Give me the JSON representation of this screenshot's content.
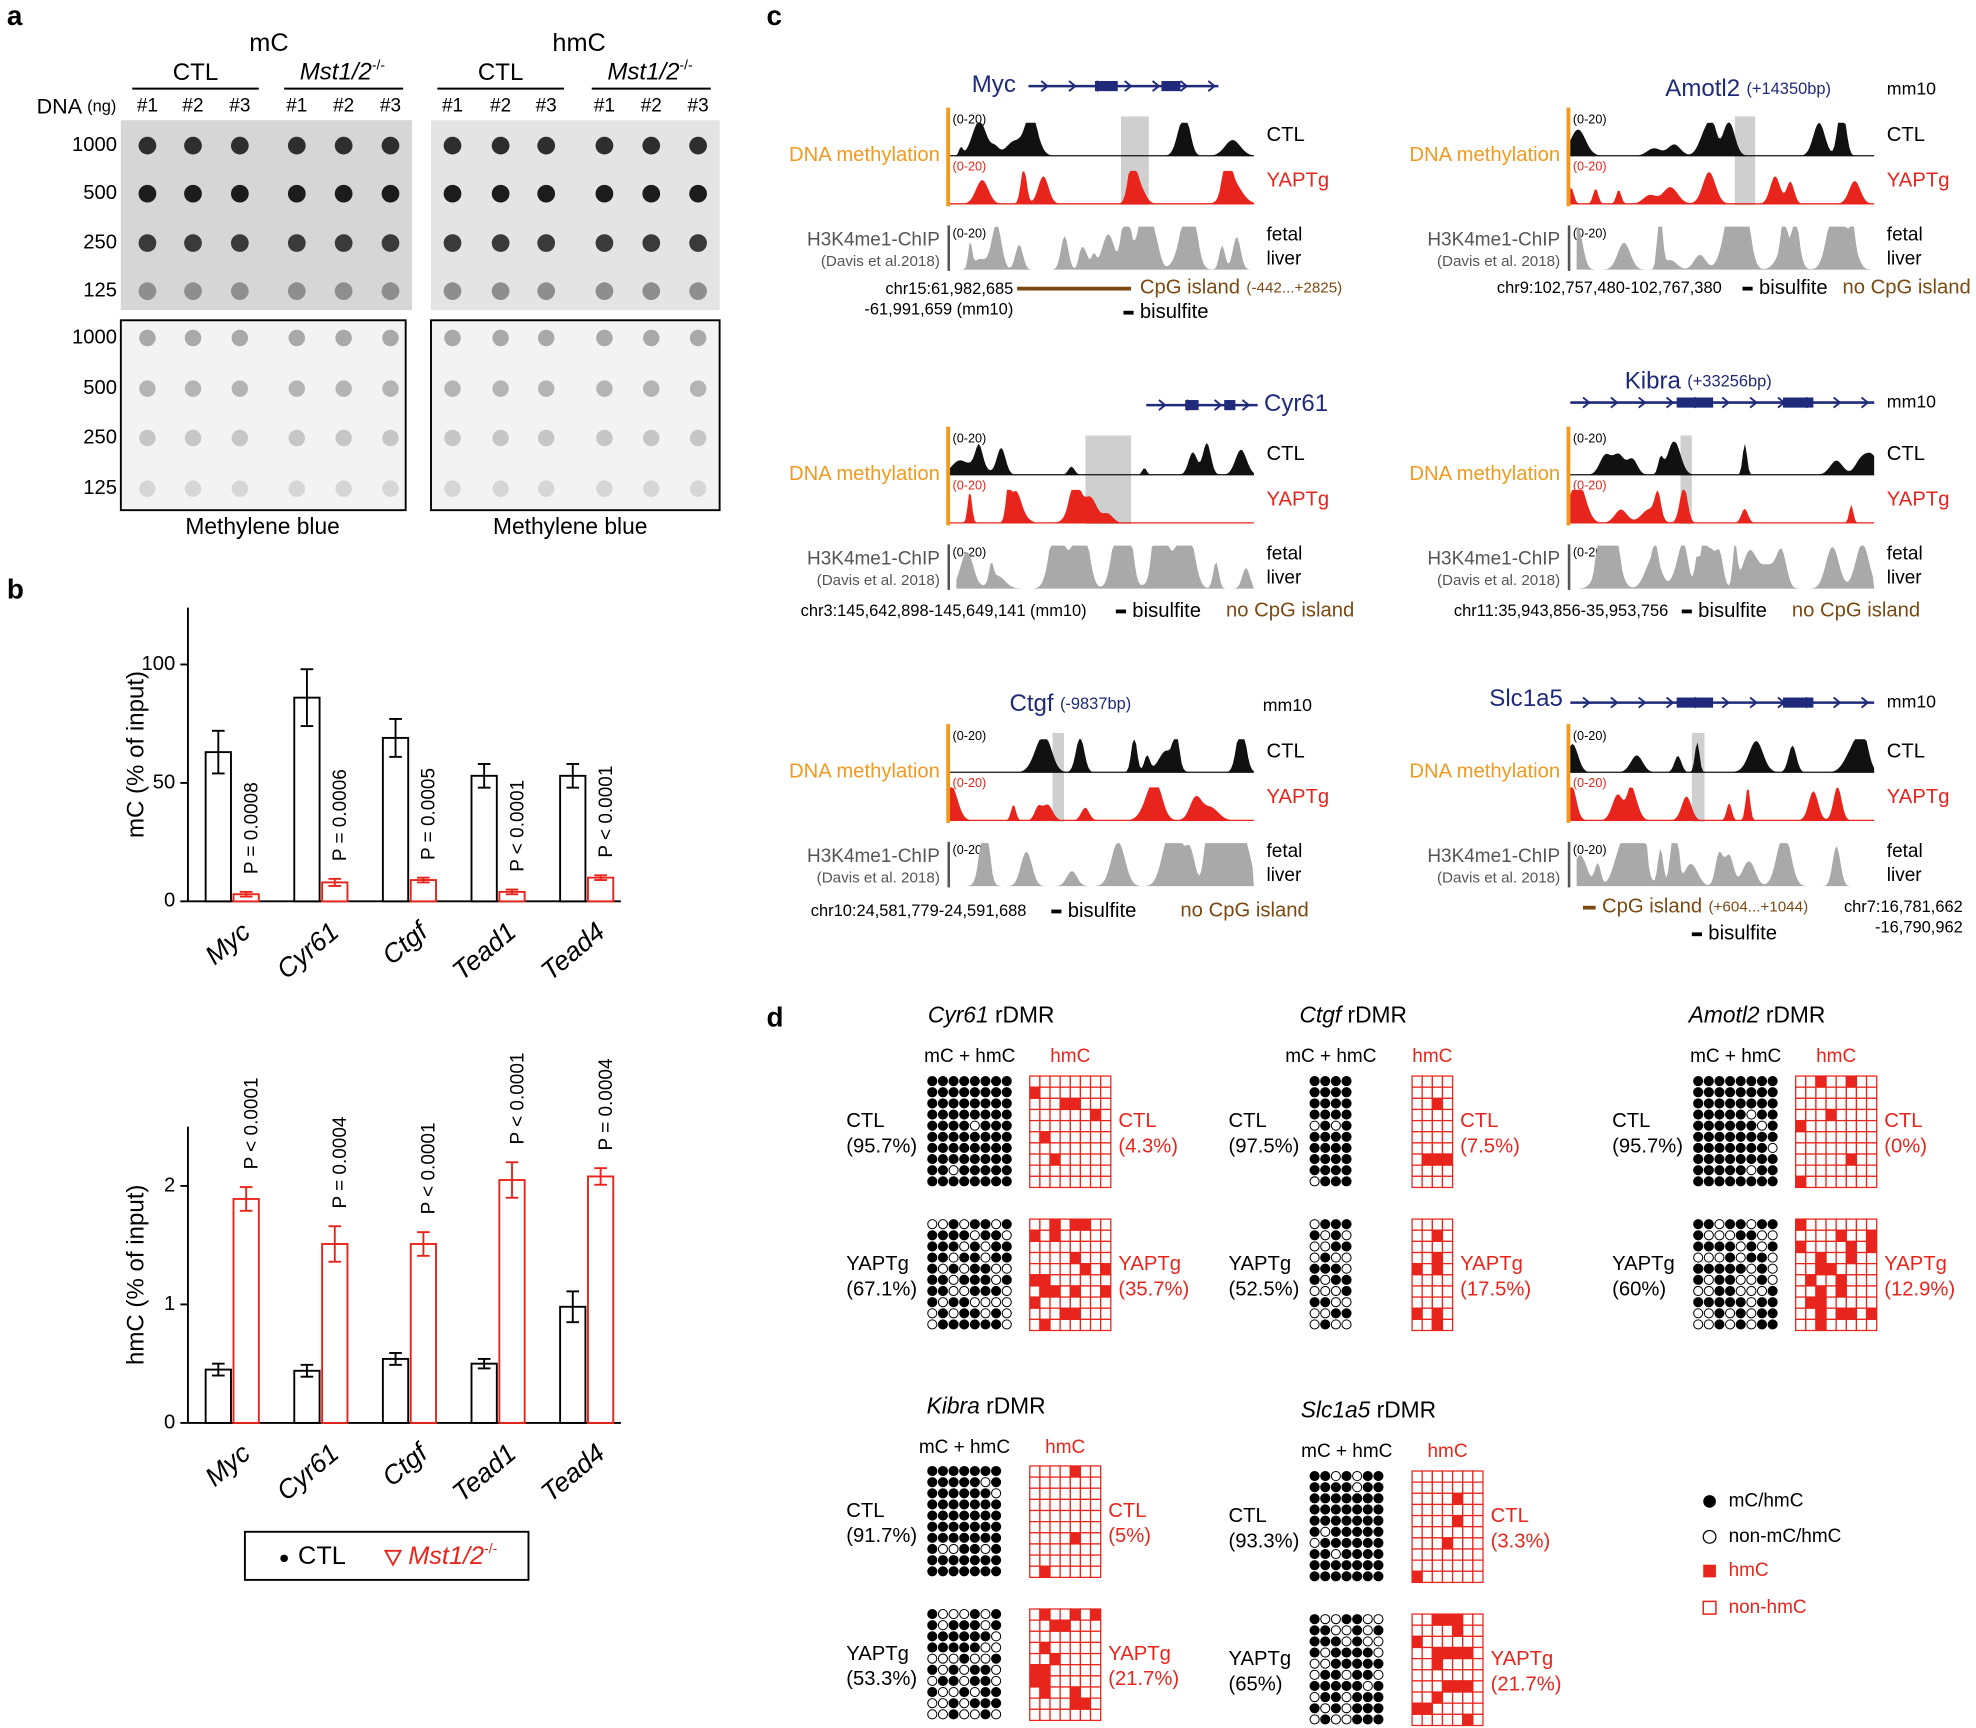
{
  "panel_a": {
    "label": "a",
    "marks": [
      "mC",
      "hmC"
    ],
    "groups": [
      "CTL",
      "Mst1/2"
    ],
    "genotype_sup": "-/-",
    "dna_label": "DNA",
    "dna_unit": "(ng)",
    "samples": [
      "#1",
      "#2",
      "#3"
    ],
    "amounts": [
      "1000",
      "500",
      "250",
      "125"
    ],
    "stain": "Methylene blue"
  },
  "panel_b": {
    "label": "b"
  },
  "chart_data": [
    {
      "type": "bar",
      "ylabel": "mC (% of input)",
      "categories": [
        "Myc",
        "Cyr61",
        "Ctgf",
        "Tead1",
        "Tead4"
      ],
      "series": [
        {
          "name": "CTL",
          "color": "#000000",
          "values": [
            63,
            86,
            69,
            53,
            53
          ],
          "errors": [
            9,
            12,
            8,
            5,
            5
          ]
        },
        {
          "name": "Mst1/2",
          "name_sup": "-/-",
          "color": "#e8251c",
          "values": [
            3,
            8,
            9,
            4,
            10
          ],
          "errors": [
            1,
            1.5,
            1,
            1,
            1
          ],
          "annotations": [
            "P = 0.0008",
            "P = 0.0006",
            "P = 0.0005",
            "P < 0.0001",
            "P < 0.0001"
          ]
        }
      ],
      "ylim": [
        0,
        124
      ],
      "yticks": [
        0,
        50,
        100
      ]
    },
    {
      "type": "bar",
      "ylabel": "hmC (% of input)",
      "categories": [
        "Myc",
        "Cyr61",
        "Ctgf",
        "Tead1",
        "Tead4"
      ],
      "series": [
        {
          "name": "CTL",
          "color": "#000000",
          "values": [
            0.45,
            0.44,
            0.54,
            0.5,
            0.98
          ],
          "errors": [
            0.05,
            0.05,
            0.05,
            0.04,
            0.13
          ]
        },
        {
          "name": "Mst1/2",
          "name_sup": "-/-",
          "color": "#e8251c",
          "values": [
            1.89,
            1.51,
            1.51,
            2.05,
            2.08
          ],
          "errors": [
            0.1,
            0.15,
            0.1,
            0.15,
            0.07
          ],
          "annotations": [
            "P < 0.0001",
            "P = 0.0004",
            "P < 0.0001",
            "P < 0.0001",
            "P = 0.0004"
          ]
        }
      ],
      "ylim": [
        0,
        2.5
      ],
      "yticks": [
        0,
        1,
        2
      ]
    }
  ],
  "panel_c": {
    "label": "c",
    "track_label": "DNA methylation",
    "range": "(0-20)",
    "ctl": "CTL",
    "yap": "YAPTg",
    "chip": "H3K4me1-ChIP",
    "tissue": [
      "fetal",
      "liver"
    ],
    "bisulfite": "bisulfite",
    "loci": [
      {
        "gene": "Myc",
        "coords": [
          "chr15:61,982,685",
          "-61,991,659 (mm10)"
        ],
        "cpg": "CpG island",
        "cpg_range": "(-442...+2825)",
        "citation": "(Davis et al.2018)"
      },
      {
        "gene": "Amotl2",
        "offset": "(+14350bp)",
        "assembly": "mm10",
        "coords": [
          "chr9:102,757,480-102,767,380"
        ],
        "cpg": "no CpG island",
        "citation": "(Davis et al. 2018)"
      },
      {
        "gene": "Cyr61",
        "coords": [
          "chr3:145,642,898-145,649,141 (mm10)"
        ],
        "cpg": "no CpG island",
        "citation": "(Davis et al. 2018)"
      },
      {
        "gene": "Kibra",
        "offset": "(+33256bp)",
        "assembly": "mm10",
        "coords": [
          "chr11:35,943,856-35,953,756"
        ],
        "cpg": "no CpG island",
        "citation": "(Davis et al. 2018)"
      },
      {
        "gene": "Ctgf",
        "offset": "(-9837bp)",
        "assembly": "mm10",
        "coords": [
          "chr10:24,581,779-24,591,688"
        ],
        "cpg": "no CpG island",
        "citation": "(Davis et al. 2018)"
      },
      {
        "gene": "Slc1a5",
        "assembly": "mm10",
        "coords": [
          "chr7:16,781,662",
          "-16,790,962"
        ],
        "cpg": "CpG island",
        "cpg_range": "(+604...+1044)",
        "citation": "(Davis et al. 2018)"
      }
    ]
  },
  "panel_d": {
    "label": "d",
    "region": "rDMR",
    "left_head": "mC + hmC",
    "right_head": "hmC",
    "ctl": "CTL",
    "yap": "YAPTg",
    "blocks": [
      {
        "gene": "Cyr61",
        "ctl_total": "(95.7%)",
        "ctl_hmc": "(4.3%)",
        "yap_total": "(67.1%)",
        "yap_hmc": "(35.7%)"
      },
      {
        "gene": "Ctgf",
        "ctl_total": "(97.5%)",
        "ctl_hmc": "(7.5%)",
        "yap_total": "(52.5%)",
        "yap_hmc": "(17.5%)"
      },
      {
        "gene": "Amotl2",
        "ctl_total": "(95.7%)",
        "ctl_hmc": "(0%)",
        "yap_total": "(60%)",
        "yap_hmc": "(12.9%)"
      },
      {
        "gene": "Kibra",
        "ctl_total": "(91.7%)",
        "ctl_hmc": "(5%)",
        "yap_total": "(53.3%)",
        "yap_hmc": "(21.7%)"
      },
      {
        "gene": "Slc1a5",
        "ctl_total": "(93.3%)",
        "ctl_hmc": "(3.3%)",
        "yap_total": "(65%)",
        "yap_hmc": "(21.7%)"
      }
    ],
    "legend": [
      "mC/hmC",
      "non-mC/hmC",
      "hmC",
      "non-hmC"
    ]
  }
}
